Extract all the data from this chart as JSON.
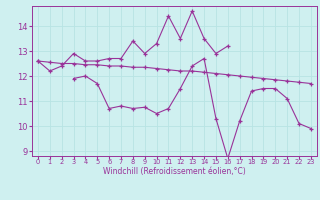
{
  "xlabel": "Windchill (Refroidissement éolien,°C)",
  "bg_color": "#cff0f0",
  "grid_color": "#b8e4e4",
  "line_color": "#993399",
  "x_values": [
    0,
    1,
    2,
    3,
    4,
    5,
    6,
    7,
    8,
    9,
    10,
    11,
    12,
    13,
    14,
    15,
    16,
    17,
    18,
    19,
    20,
    21,
    22,
    23
  ],
  "line1": [
    12.6,
    12.2,
    12.4,
    12.9,
    12.6,
    12.6,
    12.7,
    12.7,
    13.4,
    12.9,
    13.3,
    14.4,
    13.5,
    14.6,
    13.5,
    12.9,
    13.2,
    null,
    null,
    null,
    null,
    null,
    null,
    null
  ],
  "line2": [
    12.6,
    12.55,
    12.5,
    12.5,
    12.45,
    12.45,
    12.4,
    12.4,
    12.35,
    12.35,
    12.3,
    12.25,
    12.2,
    12.2,
    12.15,
    12.1,
    12.05,
    12.0,
    11.95,
    11.9,
    11.85,
    11.8,
    11.75,
    11.7
  ],
  "line3": [
    null,
    null,
    null,
    11.9,
    12.0,
    11.7,
    10.7,
    10.8,
    10.7,
    10.75,
    10.5,
    10.7,
    11.5,
    12.4,
    12.7,
    10.3,
    8.7,
    10.2,
    11.4,
    11.5,
    11.5,
    11.1,
    10.1,
    9.9
  ],
  "ylim": [
    8.8,
    14.8
  ],
  "xlim": [
    -0.5,
    23.5
  ],
  "yticks": [
    9,
    10,
    11,
    12,
    13,
    14
  ],
  "xticks": [
    0,
    1,
    2,
    3,
    4,
    5,
    6,
    7,
    8,
    9,
    10,
    11,
    12,
    13,
    14,
    15,
    16,
    17,
    18,
    19,
    20,
    21,
    22,
    23
  ]
}
